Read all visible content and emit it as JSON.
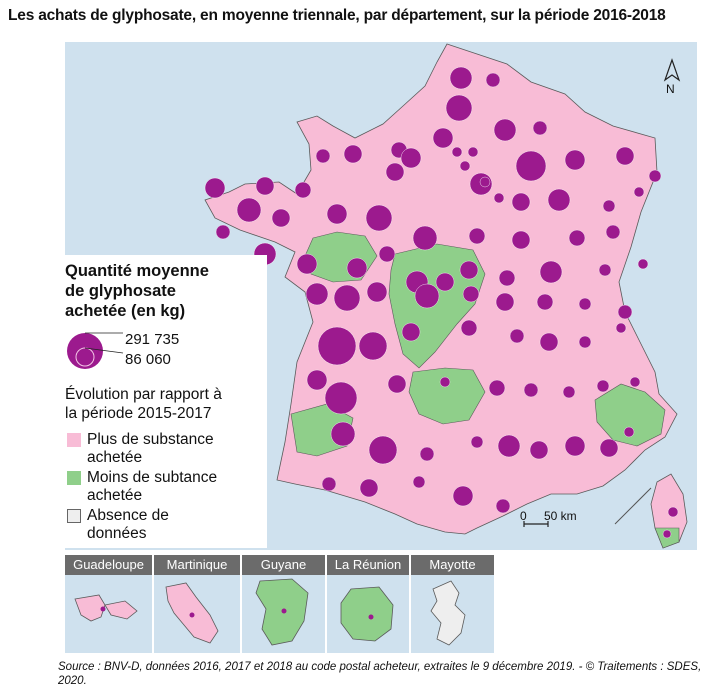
{
  "title": "Les achats de glyphosate, en moyenne triennale, par département, sur la période 2016-2018",
  "legend": {
    "quantity_title": "Quantité moyenne\nde glyphosate\nachetée (en kg)",
    "size_max": "291 735",
    "size_min": "86 060",
    "evolution_title": "Évolution par rapport à\nla période 2015-2017",
    "categories": [
      {
        "label": "Plus de substance\nachetée",
        "color": "#f8bcd6"
      },
      {
        "label": "Moins de subtance\nachetée",
        "color": "#8fcf8a"
      },
      {
        "label": "Absence de\ndonnées",
        "color": "#eeeeee"
      }
    ]
  },
  "colors": {
    "sea": "#cfe1ee",
    "increase": "#f8bcd6",
    "decrease": "#8fcf8a",
    "no_data": "#eeeeee",
    "symbol": "#9c1a8e",
    "border": "#5a5a5a"
  },
  "scale": {
    "zero": "0",
    "distance": "50 km"
  },
  "north_label": "N",
  "overseas": [
    {
      "name": "Guadeloupe",
      "trend": "increase"
    },
    {
      "name": "Martinique",
      "trend": "increase"
    },
    {
      "name": "Guyane",
      "trend": "decrease"
    },
    {
      "name": "La Réunion",
      "trend": "decrease"
    },
    {
      "name": "Mayotte",
      "trend": "no_data"
    }
  ],
  "source": "Source : BNV-D, données 2016, 2017 et 2018 au code postal acheteur, extraites le 9 décembre 2019. - © Traitements : SDES, 2020."
}
